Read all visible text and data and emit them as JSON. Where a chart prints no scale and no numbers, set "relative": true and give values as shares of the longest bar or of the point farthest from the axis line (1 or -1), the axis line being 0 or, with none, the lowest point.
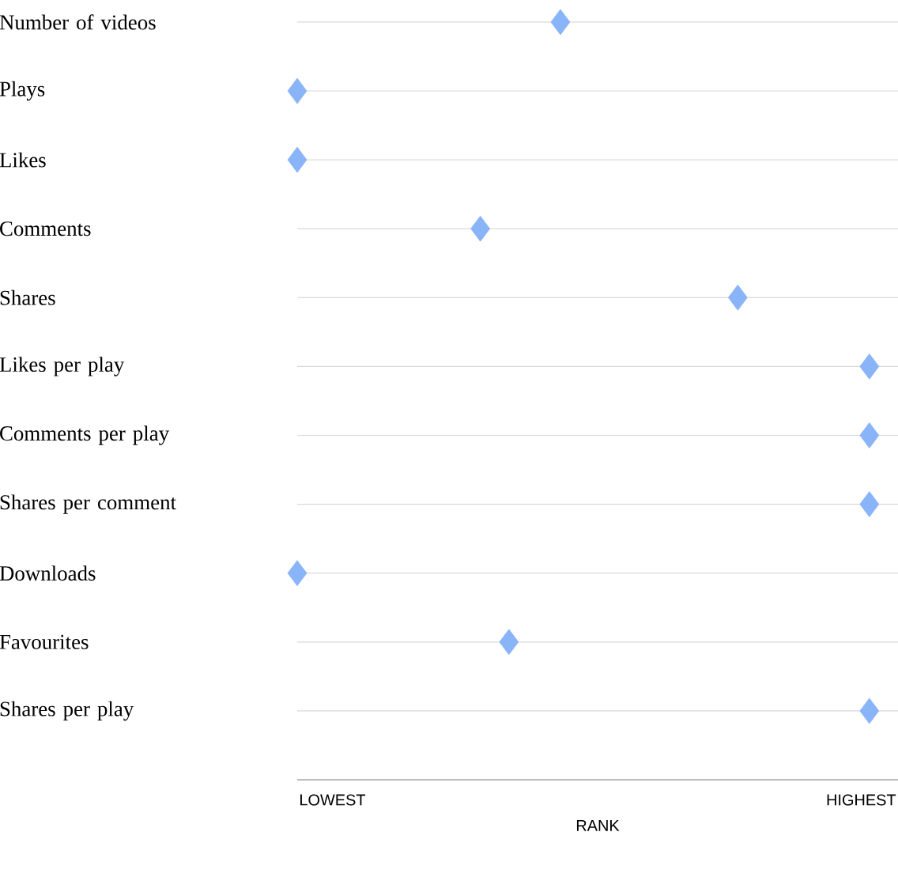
{
  "chart_data": {
    "type": "scatter",
    "orientation": "horizontal",
    "relative": true,
    "xlabel": "RANK",
    "categories": [
      "Number of videos",
      "Plays",
      "Likes",
      "Comments",
      "Shares",
      "Likes per play",
      "Comments per play",
      "Shares per comment",
      "Downloads",
      "Favourites",
      "Shares per play"
    ],
    "values": [
      0.46,
      0,
      0,
      0.32,
      0.77,
      1,
      1,
      1,
      0,
      0.37,
      1
    ],
    "color": "#8ab4f8",
    "marker": "diamond",
    "grid": "y",
    "annotations": [
      "LOWEST",
      "HIGHEST"
    ]
  }
}
